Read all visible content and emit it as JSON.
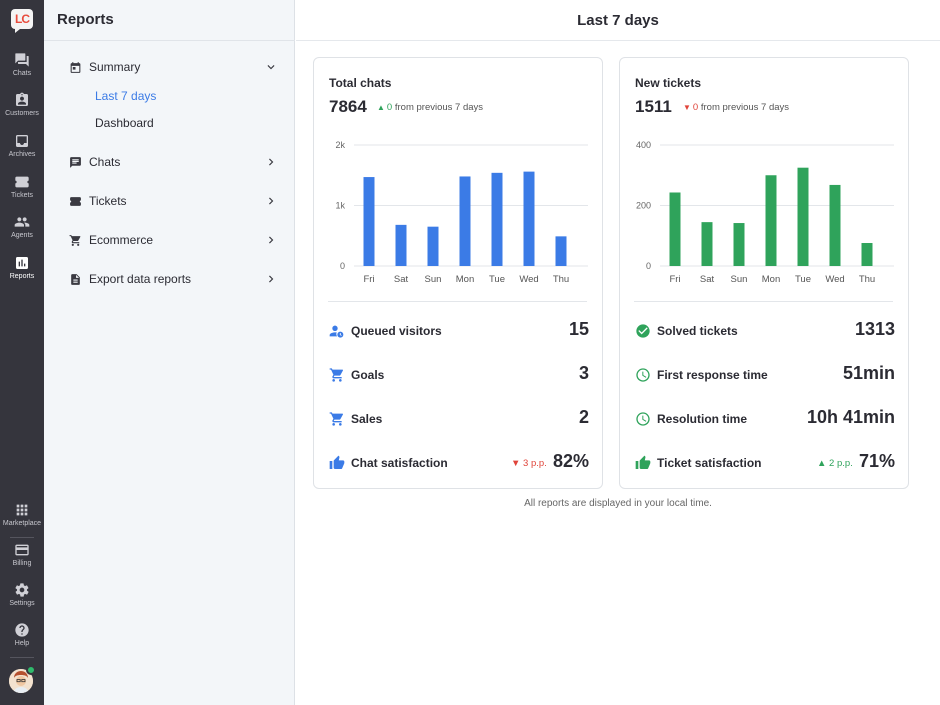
{
  "rail": {
    "logo_text": "LC",
    "top_items": [
      {
        "label": "Chats",
        "icon": "chat-icon"
      },
      {
        "label": "Customers",
        "icon": "customers-icon"
      },
      {
        "label": "Archives",
        "icon": "archive-icon"
      },
      {
        "label": "Tickets",
        "icon": "ticket-icon"
      },
      {
        "label": "Agents",
        "icon": "agents-icon"
      },
      {
        "label": "Reports",
        "icon": "reports-icon",
        "active": true
      }
    ],
    "bottom_items": [
      {
        "label": "Marketplace",
        "icon": "grid-icon"
      },
      {
        "label": "Billing",
        "icon": "card-icon"
      },
      {
        "label": "Settings",
        "icon": "gear-icon"
      },
      {
        "label": "Help",
        "icon": "help-icon"
      }
    ],
    "status_color": "#2fbb6c"
  },
  "sidebar": {
    "title": "Reports",
    "summary": {
      "label": "Summary",
      "icon": "calendar-icon"
    },
    "summary_sub": [
      "Last 7 days",
      "Dashboard"
    ],
    "items": [
      {
        "label": "Chats",
        "icon": "chat-icon"
      },
      {
        "label": "Tickets",
        "icon": "ticket-icon"
      },
      {
        "label": "Ecommerce",
        "icon": "cart-icon"
      },
      {
        "label": "Export data reports",
        "icon": "file-icon"
      }
    ]
  },
  "header": {
    "title": "Last 7 days"
  },
  "accent": "#3b7be6",
  "cards": {
    "chats": {
      "title": "Total chats",
      "total": "7864",
      "delta_value": "0",
      "delta_text": "from previous 7 days",
      "delta_dir": "up",
      "metrics": [
        {
          "label": "Queued visitors",
          "value": "15",
          "icon": "queue-icon"
        },
        {
          "label": "Goals",
          "value": "3",
          "icon": "cart-icon"
        },
        {
          "label": "Sales",
          "value": "2",
          "icon": "cart-icon"
        },
        {
          "label": "Chat satisfaction",
          "value": "82%",
          "pp": "3 p.p.",
          "pp_dir": "down",
          "icon": "thumbs-up-icon"
        }
      ]
    },
    "tickets": {
      "title": "New tickets",
      "total": "1511",
      "delta_value": "0",
      "delta_text": "from previous 7 days",
      "delta_dir": "down",
      "metrics": [
        {
          "label": "Solved tickets",
          "value": "1313",
          "icon": "check-circle-icon"
        },
        {
          "label": "First response time",
          "value": "51min",
          "icon": "clock-icon"
        },
        {
          "label": "Resolution time",
          "value": "10h 41min",
          "icon": "clock-icon"
        },
        {
          "label": "Ticket satisfaction",
          "value": "71%",
          "pp": "2 p.p.",
          "pp_dir": "up",
          "icon": "thumbs-up-icon"
        }
      ]
    }
  },
  "footer": {
    "note": "All reports are displayed in your local time."
  },
  "chart_data": [
    {
      "type": "bar",
      "categories": [
        "Fri",
        "Sat",
        "Sun",
        "Mon",
        "Tue",
        "Wed",
        "Thu"
      ],
      "values": [
        1470,
        680,
        650,
        1480,
        1540,
        1560,
        490
      ],
      "ylim": [
        0,
        2000
      ],
      "yticks": [
        "0",
        "1k",
        "2k"
      ],
      "color": "#3b7be6",
      "grid": true
    },
    {
      "type": "bar",
      "categories": [
        "Fri",
        "Sat",
        "Sun",
        "Mon",
        "Tue",
        "Wed",
        "Thu"
      ],
      "values": [
        243,
        145,
        142,
        300,
        325,
        268,
        76
      ],
      "ylim": [
        0,
        400
      ],
      "yticks": [
        "0",
        "200",
        "400"
      ],
      "color": "#2fa35b",
      "grid": true
    }
  ]
}
